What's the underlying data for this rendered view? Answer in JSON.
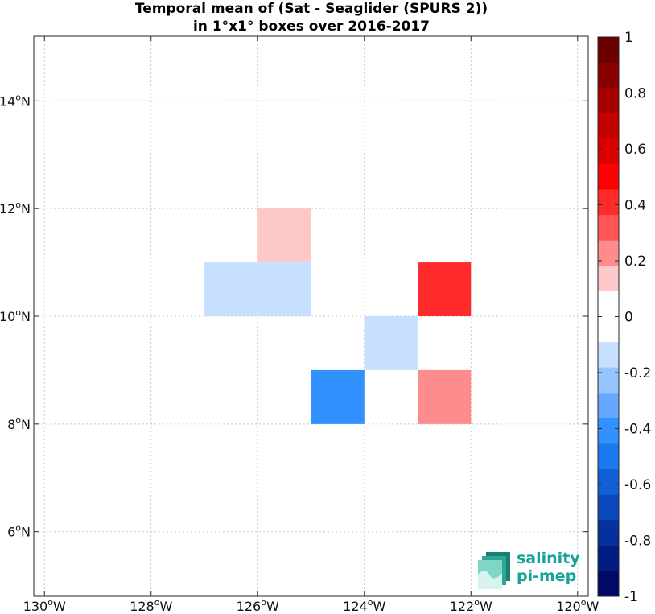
{
  "chart_data": {
    "type": "heatmap",
    "title": [
      "Temporal mean of (Sat - Seaglider (SPURS 2))",
      "in 1°x1° boxes over 2016-2017"
    ],
    "xlim": [
      -130.2,
      -119.8
    ],
    "ylim": [
      4.8,
      15.2
    ],
    "xticks": [
      -130,
      -128,
      -126,
      -124,
      -122,
      -120
    ],
    "xtick_labels": [
      "130°W",
      "128°W",
      "126°W",
      "124°W",
      "122°W",
      "120°W"
    ],
    "yticks": [
      6,
      8,
      10,
      12,
      14
    ],
    "ytick_labels": [
      "6°N",
      "8°N",
      "10°N",
      "12°N",
      "14°N"
    ],
    "grid": true,
    "cells": [
      {
        "lon": [
          -126,
          -125
        ],
        "lat": [
          11,
          12
        ],
        "value": 0.15
      },
      {
        "lon": [
          -127,
          -126
        ],
        "lat": [
          10,
          11
        ],
        "value": -0.15
      },
      {
        "lon": [
          -126,
          -125
        ],
        "lat": [
          10,
          11
        ],
        "value": -0.15
      },
      {
        "lon": [
          -123,
          -122
        ],
        "lat": [
          10,
          11
        ],
        "value": 0.45
      },
      {
        "lon": [
          -124,
          -123
        ],
        "lat": [
          9,
          10
        ],
        "value": -0.15
      },
      {
        "lon": [
          -125,
          -124
        ],
        "lat": [
          8,
          9
        ],
        "value": -0.45
      },
      {
        "lon": [
          -123,
          -122
        ],
        "lat": [
          8,
          9
        ],
        "value": 0.25
      }
    ],
    "colorbar": {
      "range": [
        -1,
        1
      ],
      "ticks": [
        1,
        0.8,
        0.6,
        0.4,
        0.2,
        0,
        -0.2,
        -0.4,
        -0.6,
        -0.8,
        -1
      ],
      "tick_labels": [
        "1",
        "0.8",
        "0.6",
        "0.4",
        "0.2",
        "0",
        "-0.2",
        "-0.4",
        "-0.6",
        "-0.8",
        "-1"
      ],
      "colors_top_to_bottom": [
        "#6b0000",
        "#8a0000",
        "#a80000",
        "#c40000",
        "#dd0000",
        "#ff0000",
        "#ff2a2a",
        "#ff5555",
        "#ff8c8c",
        "#ffc8c8",
        "#ffffff",
        "#ffffff",
        "#c8e0ff",
        "#96c4ff",
        "#64a8ff",
        "#3290ff",
        "#1a78f0",
        "#1060d6",
        "#0a48bc",
        "#0530a0",
        "#021c82",
        "#000a66"
      ]
    }
  },
  "logo": {
    "line1": "salinity",
    "line2": "pi-mep"
  }
}
